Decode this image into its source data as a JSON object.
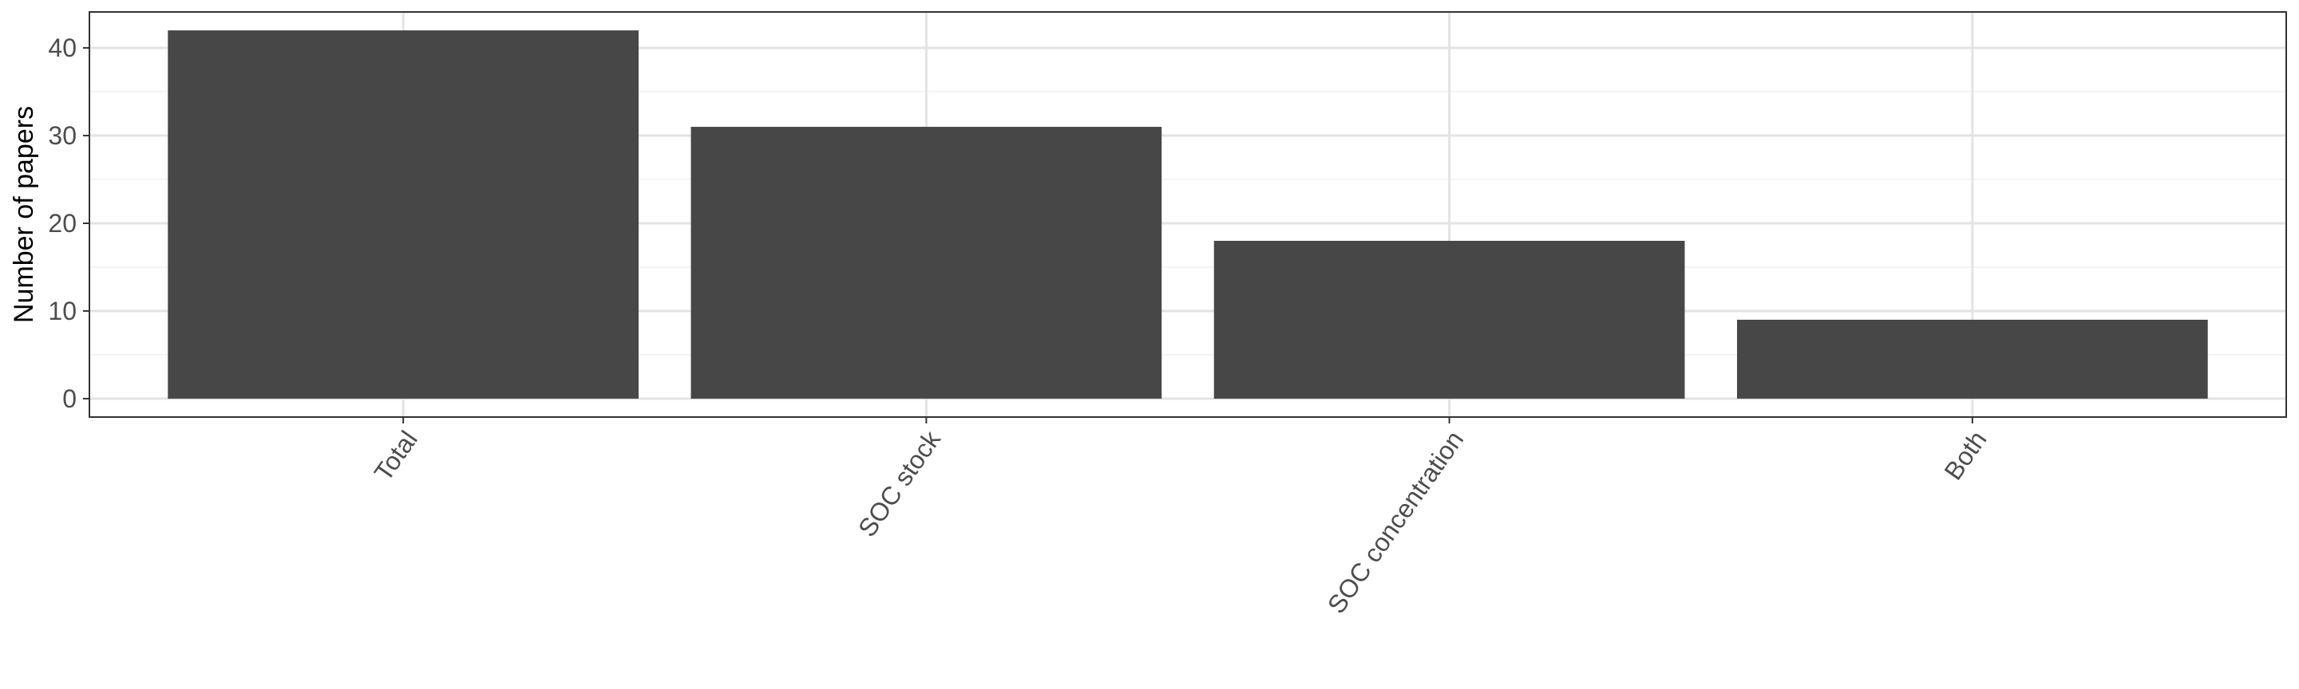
{
  "chart_data": {
    "type": "bar",
    "title": "",
    "xlabel": "",
    "ylabel": "Number of papers",
    "categories": [
      "Total",
      "SOC stock",
      "SOC concentration",
      "Both"
    ],
    "values": [
      42,
      31,
      18,
      9
    ],
    "ylim": [
      0,
      44
    ],
    "yticks": [
      0,
      10,
      20,
      30,
      40
    ],
    "grid": true,
    "legend": "none",
    "x_tick_rotation_deg": 55,
    "colors": {
      "bar": "#474747",
      "panel_border": "#333333",
      "grid_major": "#e3e3e3",
      "grid_minor": "#f0f0f0",
      "tick_label": "#4d4d4d",
      "axis_title": "#000000"
    }
  }
}
